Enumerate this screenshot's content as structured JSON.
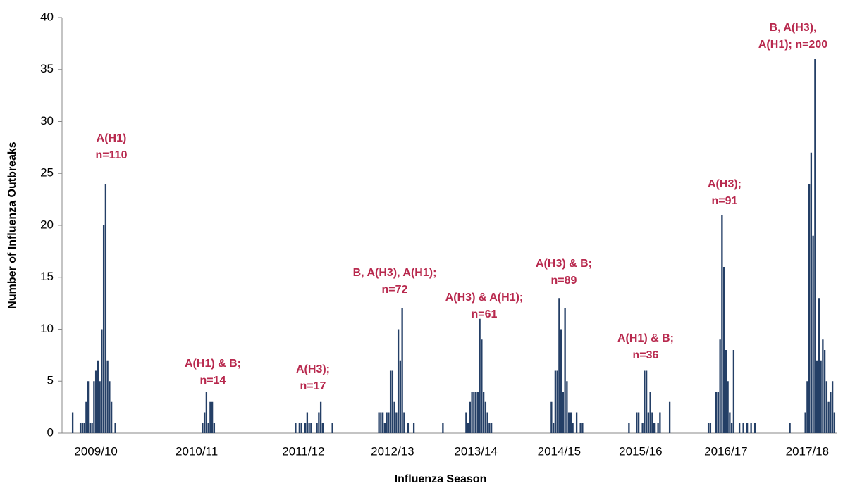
{
  "chart_data": {
    "type": "bar",
    "xlabel": "Influenza Season",
    "ylabel": "Number of Influenza Outbreaks",
    "color": "#243f66",
    "annotation_color": "#b8294e",
    "ylim": [
      0,
      40
    ],
    "yticks": [
      0,
      5,
      10,
      15,
      20,
      25,
      30,
      35,
      40
    ],
    "grid": false,
    "annotations": [
      [
        "A(H1)",
        "n=110"
      ],
      [
        "A(H1) & B;",
        "n=14"
      ],
      [
        "A(H3);",
        "n=17"
      ],
      [
        "B, A(H3), A(H1);",
        "n=72"
      ],
      [
        "A(H3) & A(H1);",
        "n=61"
      ],
      [
        "A(H3) & B;",
        "n=89"
      ],
      [
        "A(H1) & B;",
        "n=36"
      ],
      [
        "A(H3);",
        "n=91"
      ],
      [
        "B, A(H3),",
        "A(H1); n=200"
      ]
    ],
    "categories": [
      null,
      null,
      null,
      null,
      null,
      null,
      null,
      null,
      null,
      null,
      null,
      null,
      null,
      null,
      null,
      null,
      null,
      "2009/10",
      null,
      null,
      null,
      null,
      null,
      null,
      null,
      null,
      null,
      null,
      null,
      null,
      null,
      null,
      null,
      null,
      null,
      null,
      null,
      null,
      null,
      null,
      null,
      null,
      null,
      null,
      null,
      null,
      null,
      null,
      null,
      null,
      null,
      null,
      null,
      null,
      null,
      null,
      null,
      null,
      null,
      null,
      null,
      null,
      null,
      null,
      null,
      null,
      null,
      null,
      null,
      "2010/11",
      null,
      null,
      null,
      null,
      null,
      null,
      null,
      null,
      null,
      null,
      null,
      null,
      null,
      null,
      null,
      null,
      null,
      null,
      null,
      null,
      null,
      null,
      null,
      null,
      null,
      null,
      null,
      null,
      null,
      null,
      null,
      null,
      null,
      null,
      null,
      null,
      null,
      null,
      null,
      null,
      null,
      null,
      null,
      null,
      null,
      null,
      null,
      null,
      null,
      null,
      null,
      null,
      null,
      null,
      "2011/12",
      null,
      null,
      null,
      null,
      null,
      null,
      null,
      null,
      null,
      null,
      null,
      null,
      null,
      null,
      null,
      null,
      null,
      null,
      null,
      null,
      null,
      null,
      null,
      null,
      null,
      null,
      null,
      null,
      null,
      null,
      null,
      null,
      null,
      null,
      null,
      null,
      null,
      null,
      null,
      null,
      null,
      null,
      null,
      null,
      null,
      "2012/13",
      null,
      null,
      null,
      null,
      null,
      null,
      null,
      null,
      null,
      null,
      null,
      null,
      null,
      null,
      null,
      null,
      null,
      null,
      null,
      null,
      null,
      null,
      null,
      null,
      null,
      null,
      null,
      null,
      null,
      null,
      null,
      null,
      null,
      null,
      null,
      null,
      null,
      null,
      null,
      null,
      null,
      null,
      "2013/14",
      null,
      null,
      null,
      null,
      null,
      null,
      null,
      null,
      null,
      null,
      null,
      null,
      null,
      null,
      null,
      null,
      null,
      null,
      null,
      null,
      null,
      null,
      null,
      null,
      null,
      null,
      null,
      null,
      null,
      null,
      null,
      null,
      null,
      null,
      null,
      null,
      null,
      null,
      null,
      null,
      null,
      null,
      "2014/15",
      null,
      null,
      null,
      null,
      null,
      null,
      null,
      null,
      null,
      null,
      null,
      null,
      null,
      null,
      null,
      null,
      null,
      null,
      null,
      null,
      null,
      null,
      null,
      null,
      null,
      null,
      null,
      null,
      null,
      null,
      null,
      null,
      null,
      null,
      null,
      null,
      null,
      null,
      null,
      null,
      null,
      "2015/16",
      null,
      null,
      null,
      null,
      null,
      null,
      null,
      null,
      null,
      null,
      null,
      null,
      null,
      null,
      null,
      null,
      null,
      null,
      null,
      null,
      null,
      null,
      null,
      null,
      null,
      null,
      null,
      null,
      null,
      null,
      null,
      null,
      null,
      null,
      null,
      null,
      null,
      null,
      null,
      null,
      null,
      null,
      null,
      "2016/17",
      null,
      null,
      null,
      null,
      null,
      null,
      null,
      null,
      null,
      null,
      null,
      null,
      null,
      null,
      null,
      null,
      null,
      null,
      null,
      null,
      null,
      null,
      null,
      null,
      null,
      null,
      null,
      null,
      null,
      null,
      null,
      null,
      null,
      null,
      null,
      null,
      null,
      null,
      null,
      null,
      null,
      "2017/18",
      null,
      null,
      null,
      null,
      null,
      null,
      null,
      null,
      null,
      null,
      null,
      null,
      null,
      null,
      null
    ],
    "values": [
      0,
      0,
      0,
      0,
      0,
      2,
      0,
      0,
      0,
      1,
      1,
      1,
      3,
      5,
      1,
      1,
      5,
      6,
      7,
      5,
      10,
      20,
      24,
      7,
      5,
      3,
      0,
      1,
      0,
      0,
      0,
      0,
      0,
      0,
      0,
      0,
      0,
      0,
      0,
      0,
      0,
      0,
      0,
      0,
      0,
      0,
      0,
      0,
      0,
      0,
      0,
      0,
      0,
      0,
      0,
      0,
      0,
      0,
      0,
      0,
      0,
      0,
      0,
      0,
      0,
      0,
      0,
      0,
      0,
      0,
      0,
      0,
      1,
      2,
      4,
      1,
      3,
      3,
      1,
      0,
      0,
      0,
      0,
      0,
      0,
      0,
      0,
      0,
      0,
      0,
      0,
      0,
      0,
      0,
      0,
      0,
      0,
      0,
      0,
      0,
      0,
      0,
      0,
      0,
      0,
      0,
      0,
      0,
      0,
      0,
      0,
      0,
      0,
      0,
      0,
      0,
      0,
      0,
      0,
      0,
      1,
      0,
      1,
      1,
      0,
      1,
      2,
      1,
      1,
      0,
      0,
      1,
      2,
      3,
      1,
      0,
      0,
      0,
      0,
      1,
      0,
      0,
      0,
      0,
      0,
      0,
      0,
      0,
      0,
      0,
      0,
      0,
      0,
      0,
      0,
      0,
      0,
      0,
      0,
      0,
      0,
      0,
      0,
      2,
      2,
      2,
      1,
      2,
      2,
      6,
      6,
      3,
      2,
      10,
      7,
      12,
      2,
      0,
      1,
      0,
      0,
      1,
      0,
      0,
      0,
      0,
      0,
      0,
      0,
      0,
      0,
      0,
      0,
      0,
      0,
      0,
      1,
      0,
      0,
      0,
      0,
      0,
      0,
      0,
      0,
      0,
      0,
      0,
      2,
      1,
      3,
      4,
      4,
      4,
      4,
      11,
      9,
      4,
      3,
      2,
      1,
      1,
      0,
      0,
      0,
      0,
      0,
      0,
      0,
      0,
      0,
      0,
      0,
      0,
      0,
      0,
      0,
      0,
      0,
      0,
      0,
      0,
      0,
      0,
      0,
      0,
      0,
      0,
      0,
      0,
      0,
      0,
      3,
      1,
      6,
      6,
      13,
      10,
      4,
      12,
      5,
      2,
      2,
      1,
      0,
      2,
      0,
      1,
      1,
      0,
      0,
      0,
      0,
      0,
      0,
      0,
      0,
      0,
      0,
      0,
      0,
      0,
      0,
      0,
      0,
      0,
      0,
      0,
      0,
      0,
      0,
      0,
      1,
      0,
      0,
      0,
      2,
      2,
      0,
      1,
      6,
      6,
      2,
      4,
      2,
      1,
      0,
      1,
      2,
      0,
      0,
      0,
      0,
      3,
      0,
      0,
      0,
      0,
      0,
      0,
      0,
      0,
      0,
      0,
      0,
      0,
      0,
      0,
      0,
      0,
      0,
      0,
      0,
      1,
      1,
      0,
      0,
      4,
      4,
      9,
      21,
      16,
      8,
      5,
      2,
      1,
      8,
      0,
      0,
      1,
      0,
      1,
      0,
      1,
      0,
      1,
      0,
      1,
      0,
      0,
      0,
      0,
      0,
      0,
      0,
      0,
      0,
      0,
      0,
      0,
      0,
      0,
      0,
      0,
      0,
      1,
      0,
      0,
      0,
      0,
      0,
      0,
      0,
      2,
      5,
      24,
      27,
      19,
      36,
      7,
      13,
      7,
      9,
      8,
      5,
      3,
      4,
      5,
      2,
      0
    ]
  }
}
